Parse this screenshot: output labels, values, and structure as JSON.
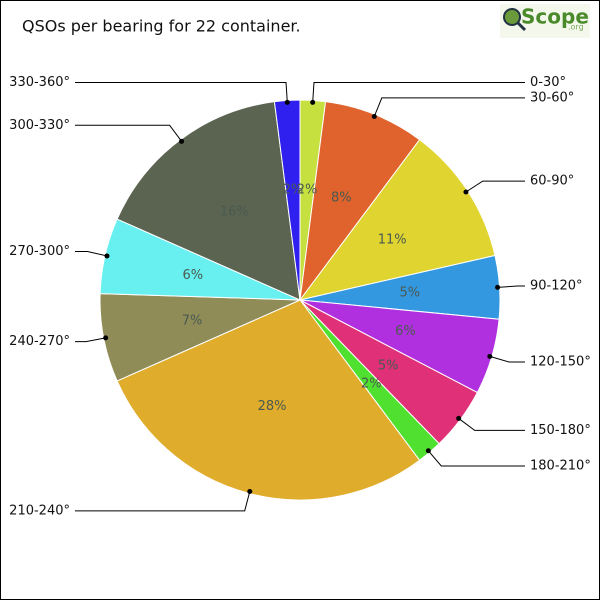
{
  "chart_data": {
    "type": "pie",
    "title": "QSOs per bearing for 22 container.",
    "logo": {
      "text": "Scope",
      "suffix": ".org"
    },
    "categories": [
      "0-30°",
      "30-60°",
      "60-90°",
      "90-120°",
      "120-150°",
      "150-180°",
      "180-210°",
      "210-240°",
      "240-270°",
      "270-300°",
      "300-330°",
      "330-360°"
    ],
    "values": [
      2,
      8,
      11,
      5,
      6,
      5,
      2,
      28,
      7,
      6,
      16,
      2
    ],
    "value_labels": [
      "2%",
      "8%",
      "11%",
      "5%",
      "6%",
      "5%",
      "2%",
      "28%",
      "7%",
      "6%",
      "16%",
      "2%"
    ],
    "colors": [
      "#c6e040",
      "#e0622c",
      "#e0d430",
      "#3398e0",
      "#b030e0",
      "#e03078",
      "#50e030",
      "#e0ac2c",
      "#908c58",
      "#68f0f0",
      "#5a6450",
      "#3020f0"
    ]
  }
}
